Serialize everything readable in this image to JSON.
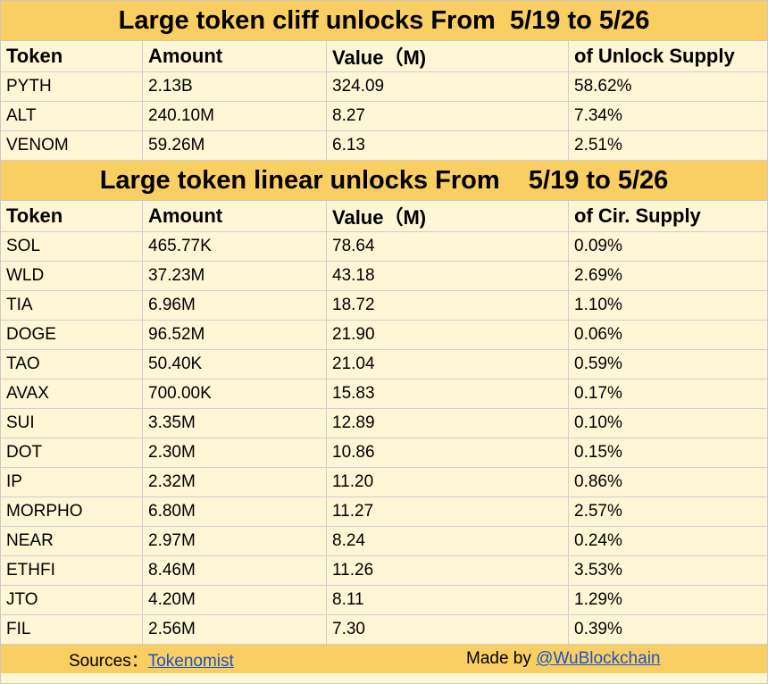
{
  "cliff": {
    "title": "Large token cliff unlocks From  5/19 to 5/26",
    "headers": [
      "Token",
      "Amount",
      "Value（M)",
      "of Unlock Supply"
    ],
    "rows": [
      [
        "PYTH",
        "2.13B",
        "324.09",
        "58.62%"
      ],
      [
        "ALT",
        "240.10M",
        "8.27",
        "7.34%"
      ],
      [
        "VENOM",
        "59.26M",
        "6.13",
        "2.51%"
      ]
    ]
  },
  "linear": {
    "title": "Large token linear unlocks From    5/19 to 5/26",
    "headers": [
      "Token",
      "Amount",
      "Value（M)",
      "of Cir. Supply"
    ],
    "rows": [
      [
        "SOL",
        "465.77K",
        "78.64",
        "0.09%"
      ],
      [
        "WLD",
        "37.23M",
        "43.18",
        "2.69%"
      ],
      [
        "TIA",
        "6.96M",
        "18.72",
        "1.10%"
      ],
      [
        "DOGE",
        "96.52M",
        "21.90",
        "0.06%"
      ],
      [
        "TAO",
        "50.40K",
        "21.04",
        "0.59%"
      ],
      [
        "AVAX",
        "700.00K",
        "15.83",
        "0.17%"
      ],
      [
        "SUI",
        "3.35M",
        "12.89",
        "0.10%"
      ],
      [
        "DOT",
        "2.30M",
        "10.86",
        "0.15%"
      ],
      [
        "IP",
        "2.32M",
        "11.20",
        "0.86%"
      ],
      [
        "MORPHO",
        "6.80M",
        "11.27",
        "2.57%"
      ],
      [
        "NEAR",
        "2.97M",
        "8.24",
        "0.24%"
      ],
      [
        "ETHFI",
        "8.46M",
        "11.26",
        "3.53%"
      ],
      [
        "JTO",
        "4.20M",
        "8.11",
        "1.29%"
      ],
      [
        "FIL",
        "2.56M",
        "7.30",
        "0.39%"
      ]
    ]
  },
  "footer": {
    "sources_label": "Sources：",
    "sources_link": "Tokenomist",
    "made_by_label": "Made by ",
    "made_by_link": "@WuBlockchain"
  }
}
